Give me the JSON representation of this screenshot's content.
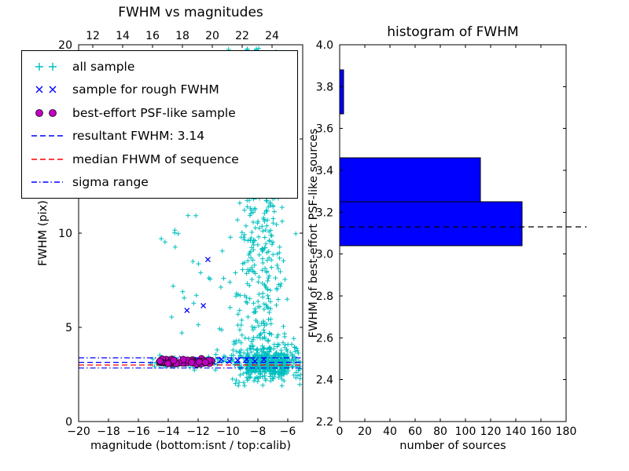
{
  "figure": {
    "background": "#ffffff"
  },
  "legend": {
    "items": [
      {
        "label": "all sample",
        "type": "plus",
        "color": "#00BFBF"
      },
      {
        "label": "sample for rough FWHM",
        "type": "x",
        "color": "#0000FF"
      },
      {
        "label": "best-effort PSF-like sample",
        "type": "circle",
        "color": "#BF00BF",
        "edge": "#1A001A"
      },
      {
        "label": "resultant FWHM: 3.14",
        "type": "dashed",
        "color": "#0000FF"
      },
      {
        "label": "median FHWM of sequence",
        "type": "dashed",
        "color": "#FF0000"
      },
      {
        "label": "sigma range",
        "type": "dashdot",
        "color": "#0000FF"
      }
    ]
  },
  "chart_data": [
    {
      "type": "scatter",
      "title": "FWHM vs magnitudes",
      "xlabel": "magnitude (bottom:isnt / top:calib)",
      "ylabel": "FWHM (pix)",
      "xlim": [
        -20,
        -5
      ],
      "ylim": [
        0,
        20
      ],
      "top_xlim": [
        11.05,
        26.05
      ],
      "xticks": [
        -20,
        -18,
        -16,
        -14,
        -12,
        -10,
        -8,
        -6
      ],
      "xtick_labels": [
        "−20",
        "−18",
        "−16",
        "−14",
        "−12",
        "−10",
        "−8",
        "−6"
      ],
      "yticks": [
        0,
        5,
        10,
        15,
        20
      ],
      "ytick_labels": [
        "0",
        "5",
        "10",
        "15",
        "20"
      ],
      "top_xticks": [
        12,
        14,
        16,
        18,
        20,
        22,
        24
      ],
      "top_xtick_labels": [
        "12",
        "14",
        "16",
        "18",
        "20",
        "22",
        "24"
      ],
      "grid": false,
      "legend_position": "upper-left",
      "series": [
        {
          "name": "all sample",
          "marker": "+",
          "color": "#00BFBF",
          "clusters": [
            {
              "n": 320,
              "x": {
                "dist": "uniform",
                "min": -8.8,
                "max": -6.0
              },
              "y": {
                "dist": "normal",
                "mean": 3.1,
                "sd": 0.4,
                "min": 2.0,
                "max": 4.6
              }
            },
            {
              "n": 200,
              "x": {
                "dist": "uniform",
                "min": -9.8,
                "max": -5.15
              },
              "y": {
                "dist": "normal",
                "mean": 3.15,
                "sd": 0.6,
                "min": 1.9,
                "max": 5.0
              }
            },
            {
              "n": 230,
              "x": {
                "dist": "normal",
                "mean": -7.9,
                "sd": 0.85,
                "min": -10.3,
                "max": -5.3
              },
              "y": {
                "dist": "uniform",
                "min": 4.2,
                "max": 12.0
              }
            },
            {
              "n": 130,
              "x": {
                "dist": "normal",
                "mean": -8.3,
                "sd": 0.75,
                "min": -10.4,
                "max": -6.4
              },
              "y": {
                "dist": "uniform",
                "min": 12.0,
                "max": 19.9
              }
            },
            {
              "n": 70,
              "x": {
                "dist": "uniform",
                "min": -15.2,
                "max": -9.8
              },
              "y": {
                "dist": "normal",
                "mean": 3.15,
                "sd": 0.2,
                "min": 2.6,
                "max": 3.8
              }
            },
            {
              "n": 26,
              "x": {
                "dist": "uniform",
                "min": -14.8,
                "max": -10.2
              },
              "y": {
                "dist": "uniform",
                "min": 3.9,
                "max": 11.5
              }
            },
            {
              "n": 12,
              "x": {
                "dist": "uniform",
                "min": -11.3,
                "max": -9.3
              },
              "y": {
                "dist": "uniform",
                "min": 12.0,
                "max": 19.0
              }
            }
          ]
        },
        {
          "name": "sample for rough FWHM",
          "marker": "x",
          "color": "#0000FF",
          "points": [
            [
              -11.35,
              8.6
            ],
            [
              -11.65,
              6.15
            ],
            [
              -12.75,
              5.9
            ],
            [
              -14.1,
              3.3
            ],
            [
              -13.55,
              3.25
            ],
            [
              -13.1,
              3.35
            ],
            [
              -12.55,
              3.2
            ],
            [
              -12.05,
              3.3
            ],
            [
              -11.5,
              3.25
            ],
            [
              -11.0,
              3.15
            ],
            [
              -10.45,
              3.3
            ],
            [
              -9.9,
              3.2
            ],
            [
              -9.35,
              3.25
            ],
            [
              -8.75,
              3.3
            ],
            [
              -8.2,
              3.2
            ],
            [
              -7.6,
              3.3
            ]
          ]
        },
        {
          "name": "best-effort PSF-like sample",
          "marker": "o",
          "color": "#BF00BF",
          "edge_color": "#1A001A",
          "band": {
            "n": 48,
            "x": {
              "dist": "uniform",
              "min": -14.65,
              "max": -11.05
            },
            "y": {
              "dist": "normal",
              "mean": 3.17,
              "sd": 0.07,
              "min": 2.95,
              "max": 3.4
            }
          }
        }
      ],
      "lines": [
        {
          "name": "resultant FWHM: 3.14",
          "y": 3.14,
          "style": "dashed",
          "color": "#0000FF"
        },
        {
          "name": "median FHWM of sequence",
          "y": 3.0,
          "style": "dashed",
          "color": "#FF0000"
        },
        {
          "name": "sigma range",
          "y_values": [
            2.84,
            3.38
          ],
          "style": "dashdot",
          "color": "#0000FF"
        }
      ]
    },
    {
      "type": "bar-horizontal",
      "title": "histogram of FWHM",
      "xlabel": "number of sources",
      "ylabel": "FWHM of best-effort PSF-like sources",
      "xlim": [
        0,
        180
      ],
      "ylim": [
        2.2,
        4.0
      ],
      "xticks": [
        0,
        20,
        40,
        60,
        80,
        100,
        120,
        140,
        160,
        180
      ],
      "xtick_labels": [
        "0",
        "20",
        "40",
        "60",
        "80",
        "100",
        "120",
        "140",
        "160",
        "180"
      ],
      "yticks": [
        2.2,
        2.4,
        2.6,
        2.8,
        3.0,
        3.2,
        3.4,
        3.6,
        3.8,
        4.0
      ],
      "ytick_labels": [
        "2.2",
        "2.4",
        "2.6",
        "2.8",
        "3.0",
        "3.2",
        "3.4",
        "3.6",
        "3.8",
        "4.0"
      ],
      "grid": false,
      "bars": [
        {
          "fwhm_from": 3.04,
          "fwhm_to": 3.25,
          "count": 145
        },
        {
          "fwhm_from": 3.25,
          "fwhm_to": 3.46,
          "count": 112
        },
        {
          "fwhm_from": 3.46,
          "fwhm_to": 3.67,
          "count": 0
        },
        {
          "fwhm_from": 3.67,
          "fwhm_to": 3.88,
          "count": 3
        }
      ],
      "bar_color": "#0000FF",
      "bar_edge": "#000000",
      "dashed_line_y": 3.13,
      "dashed_line_color": "#000000"
    }
  ]
}
